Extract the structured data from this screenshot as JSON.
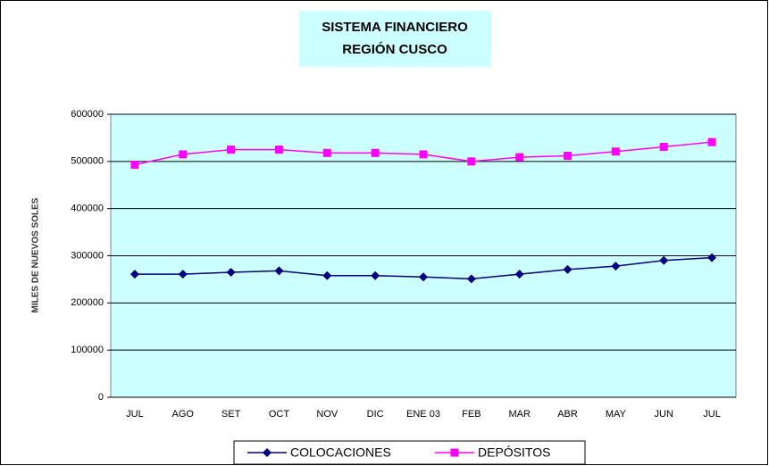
{
  "chart_data": {
    "type": "line",
    "title": [
      "SISTEMA FINANCIERO",
      "REGIÓN CUSCO"
    ],
    "y_label": "MILES DE NUEVOS SOLES",
    "categories": [
      "JUL",
      "AGO",
      "SET",
      "OCT",
      "NOV",
      "DIC",
      "ENE 03",
      "FEB",
      "MAR",
      "ABR",
      "MAY",
      "JUN",
      "JUL"
    ],
    "series": [
      {
        "name": "COLOCACIONES",
        "color": "#000080",
        "marker": "diamond",
        "values": [
          261000,
          261000,
          265000,
          268000,
          258000,
          258000,
          255000,
          251000,
          261000,
          271000,
          278000,
          290000,
          296000
        ]
      },
      {
        "name": "DEPÓSITOS",
        "color": "#ff00ff",
        "marker": "square",
        "values": [
          493000,
          515000,
          525000,
          525000,
          518000,
          518000,
          515000,
          500000,
          509000,
          512000,
          521000,
          531000,
          541000
        ]
      }
    ],
    "ylim": [
      0,
      600000
    ],
    "yticks": [
      0,
      100000,
      200000,
      300000,
      400000,
      500000,
      600000
    ],
    "grid": true,
    "legend": "bottom"
  }
}
